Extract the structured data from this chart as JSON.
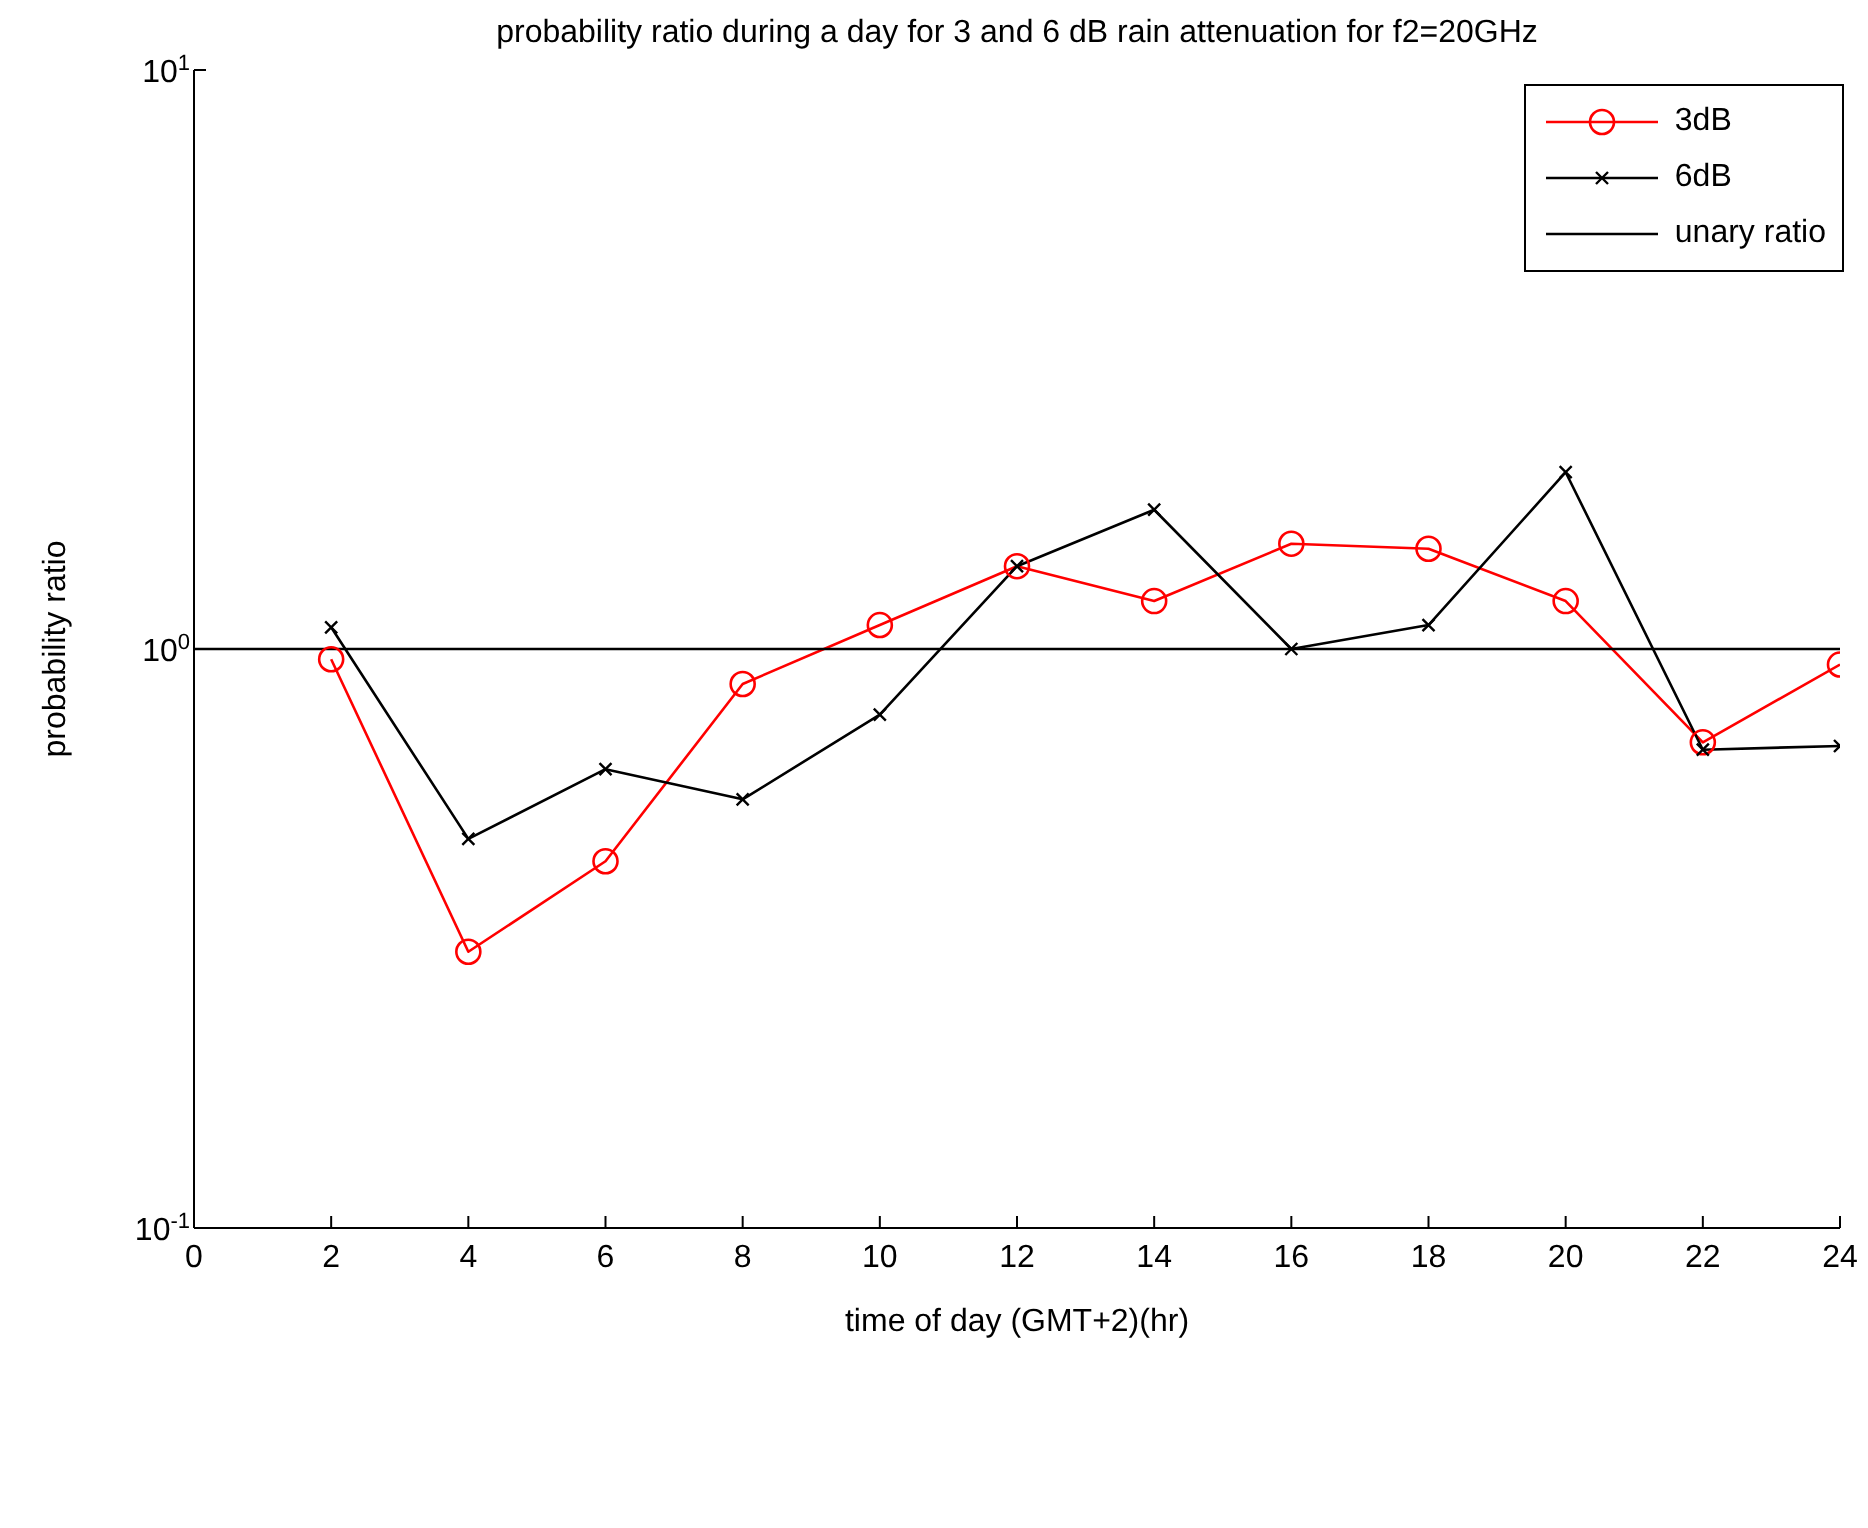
{
  "chart_data": {
    "type": "line",
    "title": "probability ratio during a day for 3 and 6 dB rain attenuation for f2=20GHz",
    "xlabel": "time of day (GMT+2)(hr)",
    "ylabel": "probability ratio",
    "x": [
      2,
      4,
      6,
      8,
      10,
      12,
      14,
      16,
      18,
      20,
      22,
      24
    ],
    "series": [
      {
        "name": "3dB",
        "color": "#ff0000",
        "marker": "circle",
        "values": [
          0.96,
          0.3,
          0.43,
          0.87,
          1.1,
          1.39,
          1.21,
          1.52,
          1.49,
          1.21,
          0.69,
          0.94
        ]
      },
      {
        "name": "6dB",
        "color": "#000000",
        "marker": "cross",
        "values": [
          1.09,
          0.47,
          0.62,
          0.55,
          0.77,
          1.39,
          1.74,
          1.0,
          1.1,
          2.02,
          0.67,
          0.68
        ]
      },
      {
        "name": "unary ratio",
        "color": "#000000",
        "marker": "none",
        "x": [
          0,
          24
        ],
        "values": [
          1,
          1
        ]
      }
    ],
    "xlim": [
      0,
      24
    ],
    "xticks": [
      0,
      2,
      4,
      6,
      8,
      10,
      12,
      14,
      16,
      18,
      20,
      22,
      24
    ],
    "ylim": [
      0.1,
      10
    ],
    "yticks": [
      {
        "value": 0.1,
        "label": "10$^{-1}$"
      },
      {
        "value": 1,
        "label": "10$^{0}$"
      },
      {
        "value": 10,
        "label": "10$^{1}$"
      }
    ],
    "log": "y",
    "grid": false,
    "legend": "top right",
    "line_style": "solid"
  }
}
